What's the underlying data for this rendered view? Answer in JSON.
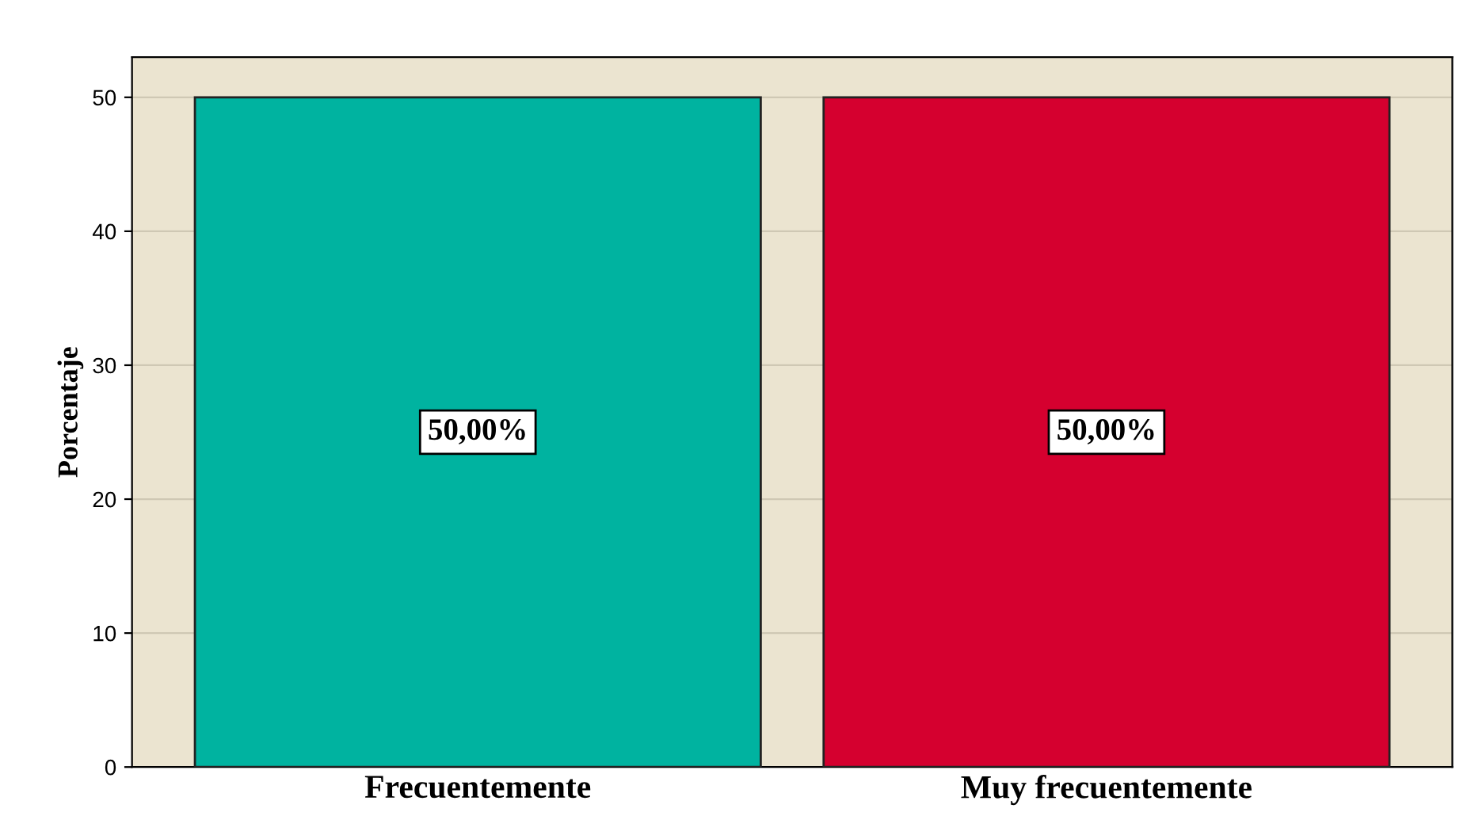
{
  "chart_data": {
    "type": "bar",
    "ylabel": "Porcentaje",
    "categories": [
      "Frecuentemente",
      "Muy frecuentemente"
    ],
    "values": [
      50,
      50
    ],
    "colors": [
      "#00b3a0",
      "#d5002f"
    ],
    "value_labels": [
      "50,00%",
      "50,00%"
    ],
    "ylim": [
      0,
      53
    ],
    "yticks": [
      0,
      10,
      20,
      30,
      40,
      50
    ],
    "grid": "y",
    "legend": false
  }
}
